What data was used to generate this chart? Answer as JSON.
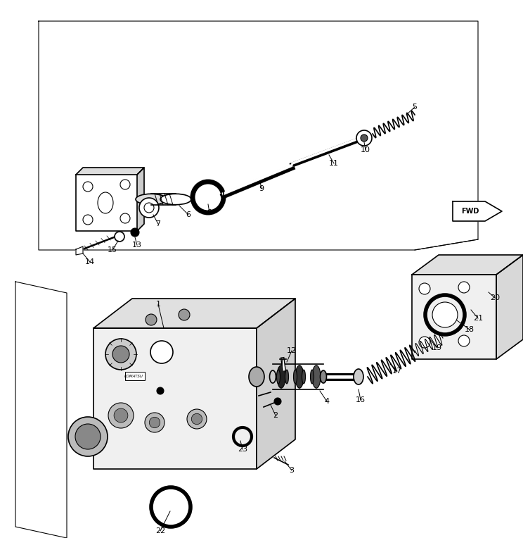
{
  "background_color": "#ffffff",
  "line_color": "#000000",
  "figure_width": 7.44,
  "figure_height": 7.64,
  "dpi": 100
}
